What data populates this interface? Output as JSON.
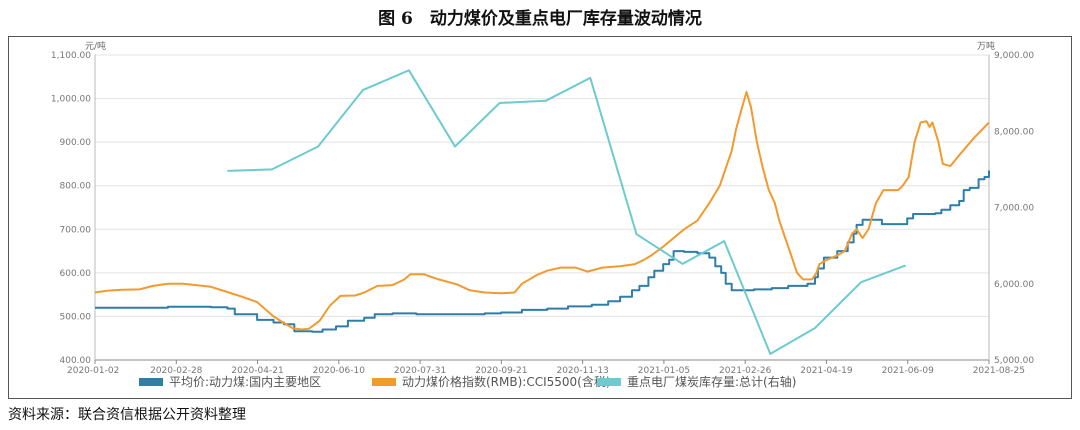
{
  "figure": {
    "title": "图 6　动力煤价及重点电厂库存量波动情况",
    "source": "资料来源：联合资信根据公开资料整理"
  },
  "chart_data": {
    "type": "line",
    "left_axis": {
      "unit": "元/吨",
      "min": 400,
      "max": 1100,
      "ticks": [
        "400.00",
        "500.00",
        "600.00",
        "700.00",
        "800.00",
        "900.00",
        "1,000.00",
        "1,100.00"
      ],
      "tick_values": [
        400,
        500,
        600,
        700,
        800,
        900,
        1000,
        1100
      ]
    },
    "right_axis": {
      "unit": "万吨",
      "min": 5000,
      "max": 9000,
      "ticks": [
        "5,000.00",
        "6,000.00",
        "7,000.00",
        "8,000.00",
        "9,000.00"
      ],
      "tick_values": [
        5000,
        6000,
        7000,
        8000,
        9000
      ]
    },
    "x_axis": {
      "min": "2020-01-02",
      "max": "2021-08-25",
      "tick_labels": [
        "2020-01-02",
        "2020-02-28",
        "2020-04-21",
        "2020-06-10",
        "2020-07-31",
        "2020-09-21",
        "2020-11-13",
        "2021-01-05",
        "2021-02-26",
        "2021-04-19",
        "2021-06-09",
        "2021-08-25"
      ]
    },
    "grid": "horizontal",
    "legend_position": "bottom",
    "series": [
      {
        "name": "平均价:动力煤:国内主要地区",
        "color": "#2f7ea8",
        "axis": "left",
        "step": true,
        "points": [
          [
            "2020-01-02",
            520
          ],
          [
            "2020-02-05",
            520
          ],
          [
            "2020-02-20",
            522
          ],
          [
            "2020-03-20",
            521
          ],
          [
            "2020-03-31",
            518
          ],
          [
            "2020-04-05",
            505
          ],
          [
            "2020-04-20",
            492
          ],
          [
            "2020-05-01",
            486
          ],
          [
            "2020-05-08",
            482
          ],
          [
            "2020-05-15",
            466
          ],
          [
            "2020-05-27",
            465
          ],
          [
            "2020-06-03",
            470
          ],
          [
            "2020-06-12",
            477
          ],
          [
            "2020-06-20",
            490
          ],
          [
            "2020-07-01",
            497
          ],
          [
            "2020-07-08",
            505
          ],
          [
            "2020-07-20",
            507
          ],
          [
            "2020-08-05",
            505
          ],
          [
            "2020-08-20",
            505
          ],
          [
            "2020-09-05",
            505
          ],
          [
            "2020-09-20",
            507
          ],
          [
            "2020-10-01",
            509
          ],
          [
            "2020-10-15",
            515
          ],
          [
            "2020-11-01",
            518
          ],
          [
            "2020-11-15",
            523
          ],
          [
            "2020-12-01",
            527
          ],
          [
            "2020-12-12",
            535
          ],
          [
            "2020-12-20",
            545
          ],
          [
            "2020-12-28",
            560
          ],
          [
            "2021-01-02",
            570
          ],
          [
            "2021-01-08",
            590
          ],
          [
            "2021-01-12",
            605
          ],
          [
            "2021-01-18",
            620
          ],
          [
            "2021-01-22",
            630
          ],
          [
            "2021-01-25",
            650
          ],
          [
            "2021-02-01",
            648
          ],
          [
            "2021-02-10",
            645
          ],
          [
            "2021-02-18",
            635
          ],
          [
            "2021-02-22",
            615
          ],
          [
            "2021-02-26",
            600
          ],
          [
            "2021-03-01",
            575
          ],
          [
            "2021-03-05",
            560
          ],
          [
            "2021-03-20",
            562
          ],
          [
            "2021-04-01",
            565
          ],
          [
            "2021-04-12",
            570
          ],
          [
            "2021-04-25",
            575
          ],
          [
            "2021-04-30",
            590
          ],
          [
            "2021-05-02",
            610
          ],
          [
            "2021-05-06",
            635
          ],
          [
            "2021-05-15",
            650
          ],
          [
            "2021-05-22",
            670
          ],
          [
            "2021-05-26",
            690
          ],
          [
            "2021-05-28",
            710
          ],
          [
            "2021-06-01",
            722
          ],
          [
            "2021-06-10",
            722
          ],
          [
            "2021-06-14",
            712
          ],
          [
            "2021-06-25",
            712
          ],
          [
            "2021-07-01",
            725
          ],
          [
            "2021-07-05",
            735
          ],
          [
            "2021-07-20",
            737
          ],
          [
            "2021-07-24",
            745
          ],
          [
            "2021-07-30",
            755
          ],
          [
            "2021-08-05",
            765
          ],
          [
            "2021-08-08",
            790
          ],
          [
            "2021-08-12",
            795
          ],
          [
            "2021-08-18",
            815
          ],
          [
            "2021-08-22",
            820
          ],
          [
            "2021-08-25",
            835
          ]
        ]
      },
      {
        "name": "动力煤价格指数(RMB):CCI5500(含税)",
        "color": "#f39a2e",
        "axis": "left",
        "step": false,
        "points": [
          [
            "2020-01-02",
            555
          ],
          [
            "2020-01-10",
            559
          ],
          [
            "2020-01-20",
            561
          ],
          [
            "2020-02-01",
            562
          ],
          [
            "2020-02-10",
            570
          ],
          [
            "2020-02-20",
            575
          ],
          [
            "2020-03-01",
            575
          ],
          [
            "2020-03-10",
            572
          ],
          [
            "2020-03-20",
            568
          ],
          [
            "2020-04-01",
            555
          ],
          [
            "2020-04-10",
            545
          ],
          [
            "2020-04-20",
            533
          ],
          [
            "2020-04-25",
            518
          ],
          [
            "2020-05-01",
            500
          ],
          [
            "2020-05-08",
            485
          ],
          [
            "2020-05-14",
            473
          ],
          [
            "2020-05-20",
            470
          ],
          [
            "2020-05-25",
            472
          ],
          [
            "2020-06-01",
            490
          ],
          [
            "2020-06-08",
            525
          ],
          [
            "2020-06-15",
            547
          ],
          [
            "2020-06-25",
            548
          ],
          [
            "2020-07-01",
            555
          ],
          [
            "2020-07-10",
            570
          ],
          [
            "2020-07-20",
            572
          ],
          [
            "2020-07-28",
            585
          ],
          [
            "2020-08-01",
            597
          ],
          [
            "2020-08-10",
            597
          ],
          [
            "2020-08-20",
            585
          ],
          [
            "2020-09-01",
            574
          ],
          [
            "2020-09-10",
            560
          ],
          [
            "2020-09-20",
            555
          ],
          [
            "2020-10-01",
            553
          ],
          [
            "2020-10-10",
            555
          ],
          [
            "2020-10-15",
            575
          ],
          [
            "2020-10-25",
            595
          ],
          [
            "2020-11-01",
            605
          ],
          [
            "2020-11-10",
            612
          ],
          [
            "2020-11-20",
            612
          ],
          [
            "2020-11-28",
            603
          ],
          [
            "2020-12-08",
            612
          ],
          [
            "2020-12-20",
            615
          ],
          [
            "2020-12-30",
            620
          ],
          [
            "2021-01-05",
            630
          ],
          [
            "2021-01-10",
            640
          ],
          [
            "2021-01-18",
            660
          ],
          [
            "2021-01-25",
            680
          ],
          [
            "2021-02-01",
            700
          ],
          [
            "2021-02-10",
            720
          ],
          [
            "2021-02-18",
            760
          ],
          [
            "2021-02-25",
            800
          ],
          [
            "2021-03-01",
            840
          ],
          [
            "2021-03-05",
            880
          ],
          [
            "2021-03-08",
            930
          ],
          [
            "2021-03-12",
            980
          ],
          [
            "2021-03-15",
            1015
          ],
          [
            "2021-03-18",
            980
          ],
          [
            "2021-03-22",
            900
          ],
          [
            "2021-03-26",
            840
          ],
          [
            "2021-03-30",
            790
          ],
          [
            "2021-04-03",
            760
          ],
          [
            "2021-04-06",
            720
          ],
          [
            "2021-04-10",
            680
          ],
          [
            "2021-04-14",
            640
          ],
          [
            "2021-04-18",
            600
          ],
          [
            "2021-04-22",
            585
          ],
          [
            "2021-04-28",
            585
          ],
          [
            "2021-05-01",
            600
          ],
          [
            "2021-05-03",
            620
          ],
          [
            "2021-05-08",
            630
          ],
          [
            "2021-05-15",
            640
          ],
          [
            "2021-05-20",
            650
          ],
          [
            "2021-05-25",
            690
          ],
          [
            "2021-05-28",
            700
          ],
          [
            "2021-06-01",
            680
          ],
          [
            "2021-06-05",
            700
          ],
          [
            "2021-06-10",
            760
          ],
          [
            "2021-06-15",
            790
          ],
          [
            "2021-06-20",
            790
          ],
          [
            "2021-06-25",
            790
          ],
          [
            "2021-06-28",
            800
          ],
          [
            "2021-07-02",
            820
          ],
          [
            "2021-07-06",
            900
          ],
          [
            "2021-07-10",
            945
          ],
          [
            "2021-07-14",
            948
          ],
          [
            "2021-07-16",
            935
          ],
          [
            "2021-07-18",
            945
          ],
          [
            "2021-07-22",
            900
          ],
          [
            "2021-07-25",
            850
          ],
          [
            "2021-07-30",
            845
          ],
          [
            "2021-08-05",
            870
          ],
          [
            "2021-08-15",
            910
          ],
          [
            "2021-08-25",
            945
          ]
        ]
      },
      {
        "name": "重点电厂煤炭库存量:总计(右轴)",
        "color": "#6ccbcf",
        "axis": "right",
        "step": false,
        "points": [
          [
            "2020-03-31",
            7480
          ],
          [
            "2020-04-30",
            7500
          ],
          [
            "2020-05-31",
            7800
          ],
          [
            "2020-06-30",
            8540
          ],
          [
            "2020-07-31",
            8800
          ],
          [
            "2020-08-31",
            7800
          ],
          [
            "2020-09-30",
            8370
          ],
          [
            "2020-10-31",
            8400
          ],
          [
            "2020-11-30",
            8700
          ],
          [
            "2020-12-31",
            6650
          ],
          [
            "2021-01-31",
            6260
          ],
          [
            "2021-02-28",
            6560
          ],
          [
            "2021-03-31",
            5080
          ],
          [
            "2021-04-30",
            5420
          ],
          [
            "2021-05-31",
            6020
          ],
          [
            "2021-06-30",
            6240
          ]
        ]
      }
    ]
  }
}
